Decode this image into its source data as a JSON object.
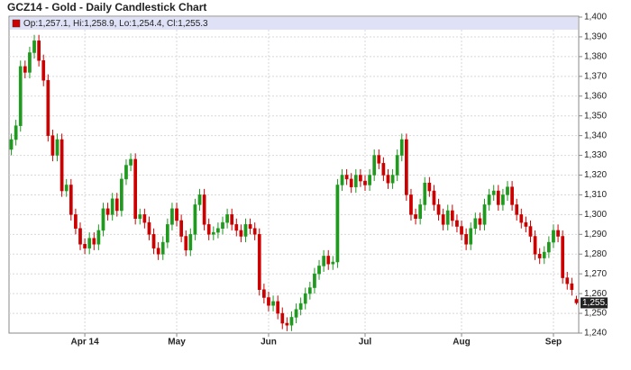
{
  "chart_data": {
    "type": "candlestick",
    "title": "GCZ14 - Gold - Daily Candlestick Chart",
    "legend_label": "Op:1,257.1, Hi:1,258.9, Lo:1,254.4, Cl:1,255.3",
    "last_price_label": "1,255.3",
    "up_color": "#1f9a1f",
    "down_color": "#cc0000",
    "legend_color": "#cc0000",
    "grid": true,
    "ylim": [
      1240,
      1400
    ],
    "yticks": [
      {
        "value": 1240,
        "label": "1,240"
      },
      {
        "value": 1250,
        "label": "1,250"
      },
      {
        "value": 1260,
        "label": "1,260"
      },
      {
        "value": 1270,
        "label": "1,270"
      },
      {
        "value": 1280,
        "label": "1,280"
      },
      {
        "value": 1290,
        "label": "1,290"
      },
      {
        "value": 1300,
        "label": "1,300"
      },
      {
        "value": 1310,
        "label": "1,310"
      },
      {
        "value": 1320,
        "label": "1,320"
      },
      {
        "value": 1330,
        "label": "1,330"
      },
      {
        "value": 1340,
        "label": "1,340"
      },
      {
        "value": 1350,
        "label": "1,350"
      },
      {
        "value": 1360,
        "label": "1,360"
      },
      {
        "value": 1370,
        "label": "1,370"
      },
      {
        "value": 1380,
        "label": "1,380"
      },
      {
        "value": 1390,
        "label": "1,390"
      },
      {
        "value": 1400,
        "label": "1,400"
      }
    ],
    "categories": [
      null,
      null,
      null,
      null,
      null,
      null,
      null,
      null,
      null,
      null,
      null,
      null,
      null,
      null,
      null,
      null,
      "Apr 14",
      null,
      null,
      null,
      null,
      null,
      null,
      null,
      null,
      null,
      null,
      null,
      null,
      null,
      null,
      null,
      null,
      null,
      null,
      null,
      "May",
      null,
      null,
      null,
      null,
      null,
      null,
      null,
      null,
      null,
      null,
      null,
      null,
      null,
      null,
      null,
      null,
      null,
      null,
      null,
      "Jun",
      null,
      null,
      null,
      null,
      null,
      null,
      null,
      null,
      null,
      null,
      null,
      null,
      null,
      null,
      null,
      null,
      null,
      null,
      null,
      null,
      "Jul",
      null,
      null,
      null,
      null,
      null,
      null,
      null,
      null,
      null,
      null,
      null,
      null,
      null,
      null,
      null,
      null,
      null,
      null,
      null,
      null,
      "Aug",
      null,
      null,
      null,
      null,
      null,
      null,
      null,
      null,
      null,
      null,
      null,
      null,
      null,
      null,
      null,
      null,
      null,
      null,
      null,
      "Sep",
      null,
      null,
      null,
      null,
      null
    ],
    "open": [
      1333,
      1338,
      1345,
      1375,
      1372,
      1382,
      1388,
      1378,
      1368,
      1340,
      1330,
      1338,
      1312,
      1315,
      1300,
      1293,
      1285,
      1283,
      1288,
      1285,
      1292,
      1303,
      1300,
      1308,
      1302,
      1318,
      1325,
      1328,
      1298,
      1300,
      1296,
      1290,
      1283,
      1280,
      1286,
      1295,
      1303,
      1297,
      1289,
      1282,
      1290,
      1305,
      1310,
      1295,
      1290,
      1291,
      1293,
      1296,
      1300,
      1295,
      1292,
      1289,
      1295,
      1293,
      1290,
      1262,
      1258,
      1254,
      1256,
      1250,
      1245,
      1244,
      1248,
      1252,
      1255,
      1260,
      1263,
      1270,
      1274,
      1279,
      1275,
      1276,
      1315,
      1320,
      1318,
      1314,
      1320,
      1317,
      1315,
      1320,
      1330,
      1326,
      1320,
      1316,
      1320,
      1330,
      1338,
      1310,
      1300,
      1298,
      1305,
      1316,
      1312,
      1305,
      1300,
      1295,
      1302,
      1297,
      1294,
      1290,
      1285,
      1293,
      1298,
      1295,
      1305,
      1310,
      1312,
      1305,
      1310,
      1314,
      1305,
      1300,
      1296,
      1294,
      1289,
      1280,
      1278,
      1281,
      1286,
      1292,
      1289,
      1268,
      1265,
      1257.1
    ],
    "high": [
      1341,
      1348,
      1378,
      1378,
      1385,
      1391,
      1391,
      1381,
      1371,
      1343,
      1341,
      1341,
      1318,
      1318,
      1303,
      1296,
      1288,
      1291,
      1291,
      1295,
      1306,
      1306,
      1311,
      1311,
      1321,
      1328,
      1331,
      1331,
      1303,
      1303,
      1299,
      1293,
      1286,
      1289,
      1298,
      1306,
      1306,
      1300,
      1292,
      1293,
      1308,
      1313,
      1313,
      1298,
      1294,
      1296,
      1299,
      1303,
      1303,
      1298,
      1295,
      1298,
      1298,
      1296,
      1293,
      1265,
      1261,
      1259,
      1259,
      1253,
      1248,
      1251,
      1255,
      1258,
      1263,
      1266,
      1273,
      1277,
      1282,
      1282,
      1279,
      1318,
      1323,
      1323,
      1321,
      1323,
      1323,
      1320,
      1323,
      1333,
      1333,
      1329,
      1323,
      1323,
      1333,
      1341,
      1341,
      1313,
      1303,
      1308,
      1319,
      1319,
      1315,
      1308,
      1303,
      1305,
      1305,
      1300,
      1297,
      1293,
      1296,
      1301,
      1301,
      1308,
      1313,
      1315,
      1315,
      1313,
      1317,
      1317,
      1308,
      1303,
      1299,
      1297,
      1292,
      1283,
      1284,
      1289,
      1295,
      1295,
      1292,
      1271,
      1268,
      1258.9
    ],
    "low": [
      1330,
      1335,
      1342,
      1369,
      1369,
      1379,
      1375,
      1365,
      1337,
      1327,
      1327,
      1309,
      1309,
      1297,
      1290,
      1282,
      1280,
      1280,
      1282,
      1282,
      1289,
      1297,
      1297,
      1299,
      1299,
      1315,
      1322,
      1295,
      1295,
      1293,
      1287,
      1280,
      1277,
      1277,
      1283,
      1292,
      1294,
      1286,
      1279,
      1279,
      1287,
      1302,
      1292,
      1287,
      1287,
      1288,
      1290,
      1293,
      1292,
      1289,
      1286,
      1286,
      1290,
      1287,
      1259,
      1255,
      1251,
      1251,
      1247,
      1242,
      1241,
      1241,
      1245,
      1249,
      1252,
      1257,
      1260,
      1267,
      1271,
      1272,
      1272,
      1273,
      1312,
      1315,
      1311,
      1311,
      1314,
      1312,
      1312,
      1317,
      1323,
      1317,
      1313,
      1313,
      1317,
      1327,
      1307,
      1297,
      1295,
      1295,
      1302,
      1309,
      1302,
      1297,
      1292,
      1292,
      1294,
      1291,
      1287,
      1282,
      1282,
      1290,
      1292,
      1292,
      1302,
      1307,
      1302,
      1302,
      1307,
      1302,
      1297,
      1293,
      1291,
      1286,
      1277,
      1275,
      1275,
      1278,
      1283,
      1286,
      1265,
      1262,
      1259,
      1254.4
    ],
    "close": [
      1338,
      1345,
      1375,
      1372,
      1382,
      1388,
      1378,
      1368,
      1340,
      1330,
      1338,
      1312,
      1315,
      1300,
      1293,
      1285,
      1283,
      1288,
      1285,
      1292,
      1303,
      1300,
      1308,
      1302,
      1318,
      1325,
      1328,
      1298,
      1300,
      1296,
      1290,
      1283,
      1280,
      1286,
      1295,
      1303,
      1297,
      1289,
      1282,
      1290,
      1305,
      1310,
      1295,
      1290,
      1291,
      1293,
      1296,
      1300,
      1295,
      1292,
      1289,
      1295,
      1293,
      1290,
      1262,
      1258,
      1254,
      1256,
      1250,
      1245,
      1244,
      1248,
      1252,
      1255,
      1260,
      1263,
      1270,
      1274,
      1279,
      1275,
      1276,
      1315,
      1320,
      1318,
      1314,
      1320,
      1317,
      1315,
      1320,
      1330,
      1326,
      1320,
      1316,
      1320,
      1330,
      1338,
      1310,
      1300,
      1298,
      1305,
      1316,
      1312,
      1305,
      1300,
      1295,
      1302,
      1297,
      1294,
      1290,
      1285,
      1293,
      1298,
      1295,
      1305,
      1310,
      1312,
      1305,
      1310,
      1314,
      1305,
      1300,
      1296,
      1294,
      1289,
      1280,
      1278,
      1281,
      1286,
      1292,
      1289,
      1268,
      1265,
      1262,
      1255.3
    ]
  }
}
